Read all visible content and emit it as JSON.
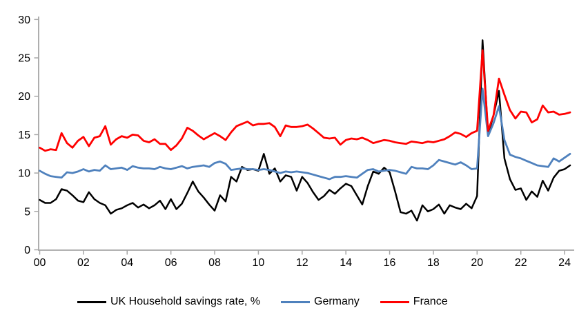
{
  "chart_data": {
    "type": "line",
    "title": "",
    "grid": false,
    "legend_position": "bottom",
    "x_axis": {
      "tick_labels": [
        "00",
        "02",
        "04",
        "06",
        "08",
        "10",
        "12",
        "14",
        "16",
        "18",
        "20",
        "22",
        "24"
      ],
      "frequency": "quarterly",
      "start": "2000Q1",
      "end": "2024Q2"
    },
    "y_axis": {
      "ticks": [
        0,
        5,
        10,
        15,
        20,
        25,
        30
      ],
      "ylim": [
        0,
        30
      ]
    },
    "colors": {
      "axis": "#A6A6A6",
      "text": "#000000",
      "background": "#FFFFFF"
    },
    "series": [
      {
        "name": "UK Household savings rate, %",
        "color": "#000000",
        "values": [
          6.5,
          6.1,
          6.1,
          6.6,
          7.9,
          7.7,
          7.1,
          6.4,
          6.2,
          7.5,
          6.6,
          6.1,
          5.8,
          4.7,
          5.2,
          5.4,
          5.8,
          6.1,
          5.5,
          5.9,
          5.4,
          5.8,
          6.4,
          5.3,
          6.6,
          5.3,
          6.0,
          7.4,
          8.9,
          7.6,
          6.8,
          5.9,
          5.1,
          7.1,
          6.3,
          9.5,
          8.9,
          10.8,
          10.4,
          10.5,
          10.3,
          12.5,
          9.9,
          10.6,
          8.9,
          9.7,
          9.5,
          7.7,
          9.5,
          8.7,
          7.5,
          6.5,
          7.0,
          7.8,
          7.3,
          8.0,
          8.6,
          8.3,
          7.1,
          5.9,
          8.3,
          10.2,
          9.9,
          10.7,
          10.1,
          7.6,
          4.9,
          4.7,
          5.1,
          3.8,
          5.8,
          5.0,
          5.3,
          5.9,
          4.7,
          5.8,
          5.5,
          5.3,
          6.0,
          5.4,
          7.0,
          27.3,
          15.0,
          17.5,
          20.7,
          11.9,
          9.2,
          7.8,
          8.0,
          6.5,
          7.6,
          6.9,
          9.0,
          7.7,
          9.4,
          10.3,
          10.5,
          11.0
        ]
      },
      {
        "name": "Germany",
        "color": "#4F81BD",
        "values": [
          10.3,
          9.9,
          9.6,
          9.5,
          9.4,
          10.1,
          10.0,
          10.2,
          10.5,
          10.2,
          10.4,
          10.3,
          11.0,
          10.5,
          10.6,
          10.7,
          10.4,
          10.9,
          10.7,
          10.6,
          10.6,
          10.5,
          10.8,
          10.6,
          10.5,
          10.7,
          10.9,
          10.6,
          10.8,
          10.9,
          11.0,
          10.8,
          11.3,
          11.5,
          11.2,
          10.4,
          10.5,
          10.6,
          10.5,
          10.5,
          10.4,
          10.5,
          10.4,
          10.2,
          10.0,
          10.2,
          10.1,
          10.2,
          10.1,
          10.0,
          9.8,
          9.6,
          9.4,
          9.2,
          9.5,
          9.5,
          9.6,
          9.5,
          9.4,
          9.9,
          10.4,
          10.5,
          10.2,
          10.3,
          10.4,
          10.3,
          10.1,
          9.9,
          10.8,
          10.6,
          10.6,
          10.5,
          11.0,
          11.7,
          11.5,
          11.3,
          11.1,
          11.4,
          11.0,
          10.5,
          10.6,
          21.0,
          14.8,
          16.5,
          18.7,
          14.3,
          12.4,
          12.1,
          11.9,
          11.6,
          11.3,
          11.0,
          10.9,
          10.8,
          11.9,
          11.5,
          12.0,
          12.5
        ]
      },
      {
        "name": "France",
        "color": "#FF0000",
        "values": [
          13.3,
          12.9,
          13.1,
          13.0,
          15.2,
          13.9,
          13.3,
          14.2,
          14.7,
          13.5,
          14.6,
          14.8,
          16.1,
          13.7,
          14.4,
          14.8,
          14.6,
          15.0,
          14.9,
          14.2,
          14.0,
          14.4,
          13.8,
          13.8,
          13.0,
          13.6,
          14.5,
          15.9,
          15.5,
          14.9,
          14.4,
          14.8,
          15.2,
          14.8,
          14.3,
          15.3,
          16.1,
          16.4,
          16.7,
          16.2,
          16.4,
          16.4,
          16.5,
          16.0,
          14.8,
          16.2,
          16.0,
          16.0,
          16.1,
          16.3,
          15.8,
          15.2,
          14.6,
          14.5,
          14.6,
          13.7,
          14.3,
          14.5,
          14.4,
          14.6,
          14.3,
          13.9,
          14.1,
          14.3,
          14.2,
          14.0,
          13.9,
          13.8,
          14.1,
          14.0,
          13.9,
          14.1,
          14.0,
          14.2,
          14.4,
          14.8,
          15.3,
          15.1,
          14.7,
          15.2,
          15.5,
          26.0,
          15.5,
          17.5,
          22.3,
          20.2,
          18.2,
          17.1,
          18.0,
          17.9,
          16.6,
          17.0,
          18.8,
          17.9,
          18.0,
          17.6,
          17.7,
          17.9
        ]
      }
    ]
  }
}
